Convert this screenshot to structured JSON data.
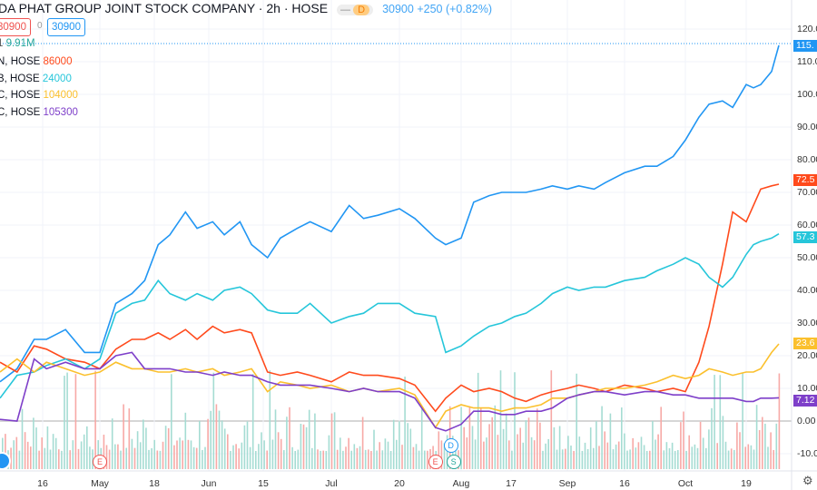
{
  "header": {
    "title": "DA PHAT GROUP JOINT STOCK COMPANY · 2h · HOSE",
    "badge": "D",
    "price": "30900",
    "change": "+250 (+0.82%)",
    "sell": "30900",
    "spread": "0",
    "buy": "30900",
    "volume": "9.91M"
  },
  "compare": [
    {
      "label": "N, HOSE",
      "value": "86000",
      "color": "#ff4a1c"
    },
    {
      "label": "B, HOSE",
      "value": "24000",
      "color": "#26c6da"
    },
    {
      "label": "C, HOSE",
      "value": "104000",
      "color": "#fbc02d"
    },
    {
      "label": "C, HOSE",
      "value": "105300",
      "color": "#7e3fc9"
    }
  ],
  "markers": [
    {
      "label": "E",
      "x": "May 1"
    },
    {
      "label": "E",
      "x": "Jul 27"
    },
    {
      "label": "D",
      "x": "Jul 30"
    },
    {
      "label": "S",
      "x": "Jul 30"
    }
  ],
  "settings_icon": "gear-icon",
  "chart_data": {
    "type": "line",
    "yaxis": "percent change",
    "ylim": [
      -14,
      126
    ],
    "yticks": [
      "120.00",
      "110.00",
      "100.00",
      "90.00",
      "80.00",
      "70.00",
      "60.00",
      "50.00",
      "40.00",
      "30.00",
      "20.00",
      "10.00",
      "0.00",
      "-10.00"
    ],
    "xticks": [
      "16",
      "May",
      "18",
      "Jun",
      "15",
      "Jul",
      "20",
      "Aug",
      "17",
      "Sep",
      "16",
      "Oct",
      "19"
    ],
    "x": [
      "Apr 6",
      "Apr 10",
      "Apr 14",
      "Apr 17",
      "Apr 22",
      "Apr 27",
      "May 1",
      "May 6",
      "May 11",
      "May 15",
      "May 19",
      "May 22",
      "May 26",
      "May 29",
      "Jun 2",
      "Jun 5",
      "Jun 9",
      "Jun 12",
      "Jun 16",
      "Jun 19",
      "Jun 23",
      "Jun 26",
      "Jul 1",
      "Jul 6",
      "Jul 10",
      "Jul 14",
      "Jul 20",
      "Jul 23",
      "Jul 27",
      "Jul 29",
      "Aug 1",
      "Aug 5",
      "Aug 10",
      "Aug 14",
      "Aug 18",
      "Aug 21",
      "Aug 25",
      "Aug 28",
      "Sep 1",
      "Sep 4",
      "Sep 8",
      "Sep 11",
      "Sep 16",
      "Sep 21",
      "Sep 24",
      "Sep 28",
      "Oct 1",
      "Oct 5",
      "Oct 8",
      "Oct 12",
      "Oct 15",
      "Oct 19",
      "Oct 21",
      "Oct 23",
      "Oct 26",
      "Oct 28"
    ],
    "series": [
      {
        "color": "#2196f3",
        "last": "115.",
        "values": [
          12,
          16,
          25,
          25,
          28,
          21,
          21,
          36,
          39,
          43,
          54,
          57,
          64,
          59,
          61,
          57,
          61,
          54,
          50,
          56,
          59,
          61,
          58,
          66,
          62,
          63,
          65,
          62,
          56,
          54,
          56,
          67,
          69,
          70,
          70,
          70,
          71,
          72,
          71,
          72,
          71,
          73,
          76,
          78,
          78,
          81,
          86,
          93,
          97,
          98,
          96,
          103,
          102,
          103,
          107,
          115
        ]
      },
      {
        "color": "#ff4a1c",
        "last": "72.5",
        "values": [
          18,
          15,
          23,
          22,
          19,
          18,
          16,
          22,
          25,
          25,
          27,
          25,
          28,
          25,
          29,
          27,
          28,
          27,
          15,
          14,
          15,
          14,
          12,
          15,
          14,
          14,
          13,
          11,
          3,
          7,
          11,
          9,
          10,
          9,
          7,
          6,
          8,
          9,
          10,
          11,
          10,
          9,
          11,
          10,
          9,
          10,
          9,
          18,
          29,
          48,
          64,
          61,
          66,
          71,
          72,
          72.5
        ]
      },
      {
        "color": "#26c6da",
        "last": "57.3",
        "values": [
          7,
          14,
          15,
          17,
          19,
          16,
          19,
          33,
          36,
          37,
          43,
          39,
          37,
          39,
          37,
          40,
          41,
          39,
          34,
          33,
          33,
          36,
          30,
          32,
          33,
          36,
          36,
          33,
          32,
          21,
          23,
          26,
          29,
          30,
          32,
          33,
          36,
          39,
          41,
          40,
          41,
          41,
          43,
          44,
          46,
          48,
          50,
          48,
          44,
          41,
          44,
          51,
          54,
          55,
          56,
          57.3
        ]
      },
      {
        "color": "#fbc02d",
        "last": "23.6",
        "values": [
          15,
          19,
          15,
          18,
          16,
          14,
          15,
          18,
          16,
          16,
          15,
          15,
          16,
          15,
          16,
          14,
          15,
          16,
          9,
          12,
          11,
          10,
          11,
          9,
          10,
          9,
          10,
          8,
          -2,
          3,
          5,
          4,
          4,
          3,
          4,
          4,
          5,
          7,
          7,
          8,
          9,
          10,
          10,
          11,
          12,
          14,
          13,
          14,
          16,
          15,
          14,
          15,
          15,
          16,
          21,
          23.6
        ]
      },
      {
        "color": "#7e3fc9",
        "last": "7.12",
        "values": [
          0.5,
          0,
          19,
          16,
          18,
          16,
          16,
          20,
          21,
          16,
          16,
          16,
          15,
          15,
          14,
          15,
          14,
          14,
          12,
          11,
          11,
          11,
          10,
          9,
          10,
          9,
          9,
          7,
          -2,
          -3,
          -1,
          3,
          3,
          2,
          2,
          3,
          3,
          4,
          7,
          8,
          9,
          9,
          8,
          9,
          9,
          8,
          8,
          7,
          7,
          7,
          7,
          6,
          6,
          7,
          7,
          7.12
        ]
      }
    ]
  }
}
